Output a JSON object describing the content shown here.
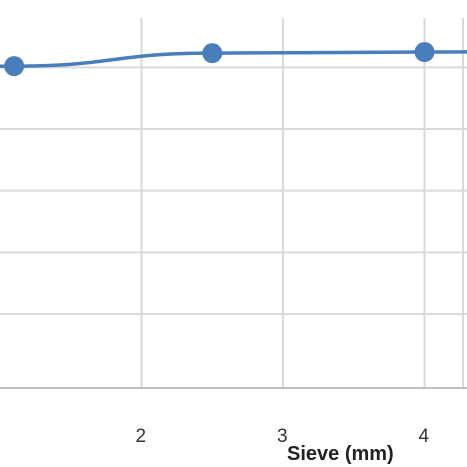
{
  "chart_data": {
    "type": "line",
    "title": "",
    "xlabel": "Sieve (mm)",
    "ylabel": "",
    "xlim": [
      1.0,
      4.3
    ],
    "ylim": [
      0,
      100
    ],
    "x_ticks": [
      2,
      3,
      4
    ],
    "x_tick_labels": [
      "2",
      "3",
      "4"
    ],
    "grid": true,
    "legend": "none",
    "series": [
      {
        "color": "#4A7EBB",
        "x": [
          0.5,
          1.1,
          2.5,
          4.0,
          4.8
        ],
        "y": [
          86.5,
          87.0,
          90.5,
          90.8,
          91.0
        ]
      }
    ],
    "colors": {
      "line": "#4A7EBB",
      "marker": "#4A7EBB",
      "grid": "#d9d9d9",
      "axis": "#bfbfbf"
    }
  }
}
